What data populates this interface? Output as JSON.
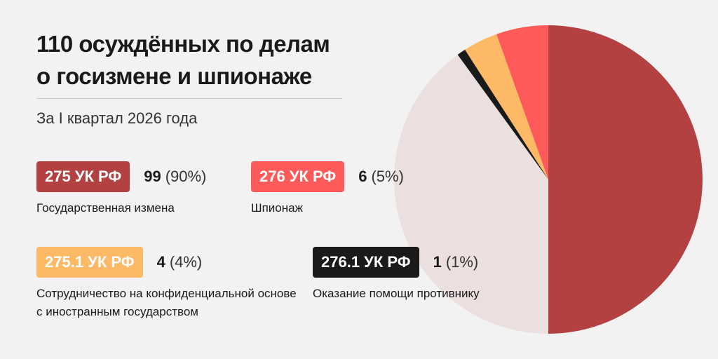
{
  "chart_data": {
    "type": "pie",
    "title": "110 осуждённых по делам о госизмене и шпионаже",
    "subtitle": "За I квартал 2026 года",
    "categories": [
      "275 УК РФ",
      "276 УК РФ",
      "275.1 УК РФ",
      "276.1 УК РФ"
    ],
    "values": [
      99,
      6,
      4,
      1
    ],
    "percents": [
      "(90%)",
      "(5%)",
      "(4%)",
      "(1%)"
    ],
    "series": [
      {
        "name": "275 УК РФ",
        "value": 99,
        "percent": "(90%)",
        "description": "Государственная измена",
        "color": "#b34141"
      },
      {
        "name": "276 УК РФ",
        "value": 6,
        "percent": "(5%)",
        "description": "Шпионаж",
        "color": "#fe5a5a"
      },
      {
        "name": "275.1 УК РФ",
        "value": 4,
        "percent": "(4%)",
        "description": "Сотрудничество на конфиденциальной основе с иностранным государством",
        "color": "#fdb966"
      },
      {
        "name": "276.1 УК РФ",
        "value": 1,
        "percent": "(1%)",
        "description": "Оказание помощи противнику",
        "color": "#1a1a1a"
      }
    ],
    "background_color": "#f2f2f2",
    "pie_rest_color": "#ebdfdf",
    "legend": "left",
    "grid": false
  }
}
